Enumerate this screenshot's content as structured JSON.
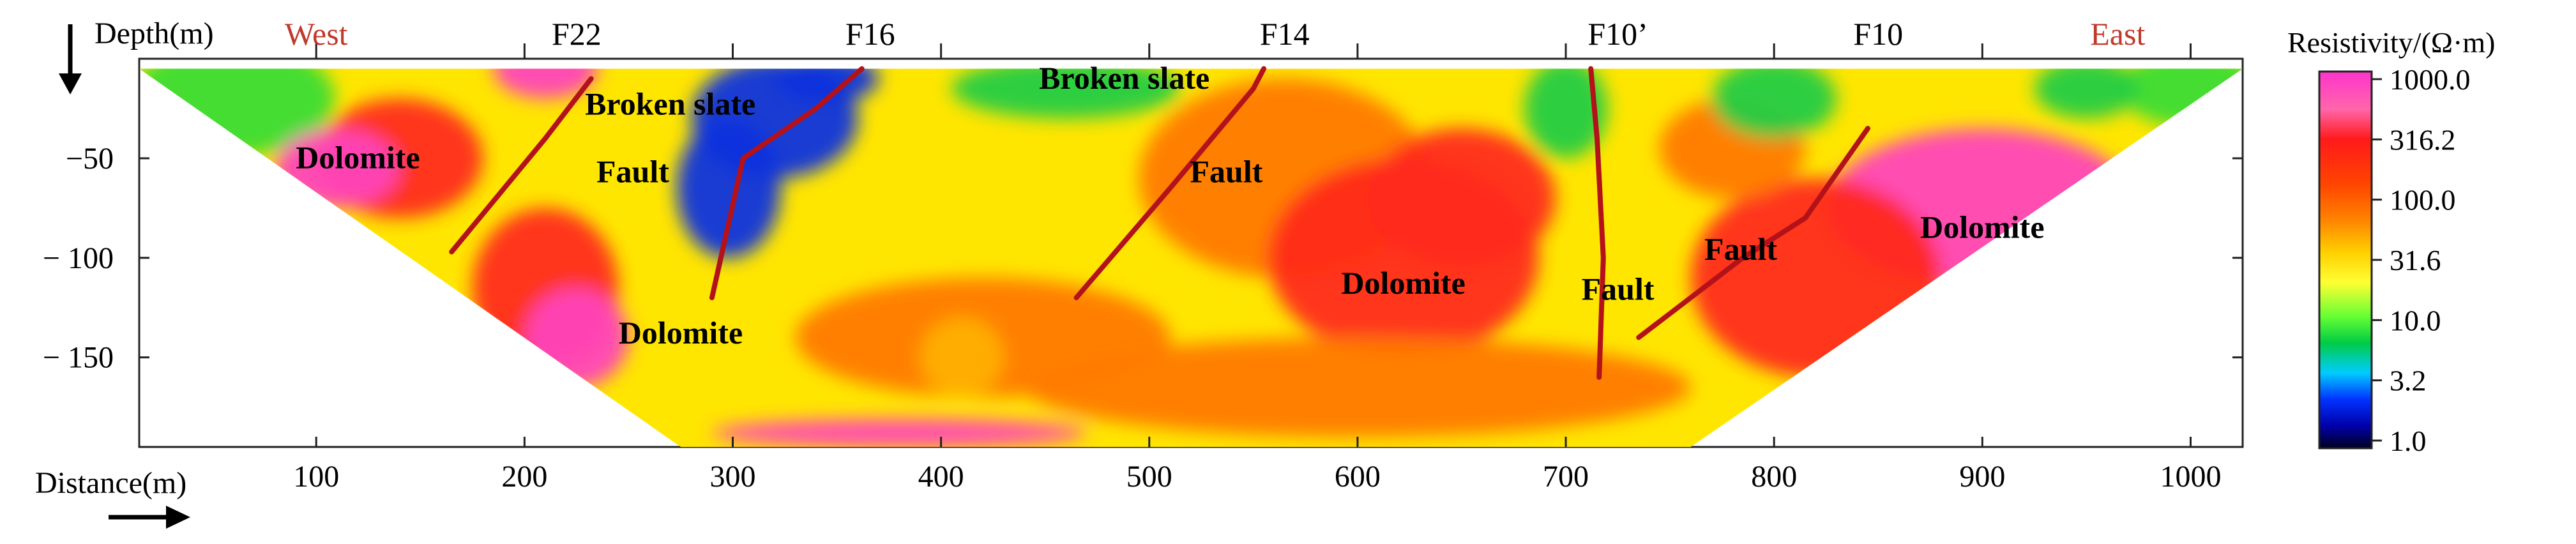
{
  "figure": {
    "depth_axis_label": "Depth(m)",
    "distance_axis_label": "Distance(m)",
    "direction_left": "West",
    "direction_right": "East",
    "direction_color": "#c0392b"
  },
  "chart_data": {
    "type": "heatmap",
    "title": "",
    "xlabel": "Distance(m)",
    "ylabel": "Depth(m)",
    "xlim": [
      15,
      1025
    ],
    "ylim": [
      -195,
      0
    ],
    "x_ticks": [
      {
        "value": 100,
        "label": "100"
      },
      {
        "value": 200,
        "label": "200"
      },
      {
        "value": 300,
        "label": "300"
      },
      {
        "value": 400,
        "label": "400"
      },
      {
        "value": 500,
        "label": "500"
      },
      {
        "value": 600,
        "label": "600"
      },
      {
        "value": 700,
        "label": "700"
      },
      {
        "value": 800,
        "label": "800"
      },
      {
        "value": 900,
        "label": "900"
      },
      {
        "value": 1000,
        "label": "1000"
      }
    ],
    "y_ticks": [
      {
        "value": -50,
        "label": "−50"
      },
      {
        "value": -100,
        "label": "− 100"
      },
      {
        "value": -150,
        "label": "− 150"
      }
    ],
    "top_labels": [
      {
        "x": 100,
        "text": "West",
        "color": "#c0392b"
      },
      {
        "x": 225,
        "text": "F22",
        "color": "#000000"
      },
      {
        "x": 366,
        "text": "F16",
        "color": "#000000"
      },
      {
        "x": 565,
        "text": "F14",
        "color": "#000000"
      },
      {
        "x": 725,
        "text": "F10’",
        "color": "#000000"
      },
      {
        "x": 850,
        "text": "F10",
        "color": "#000000"
      },
      {
        "x": 965,
        "text": "East",
        "color": "#c0392b"
      }
    ],
    "grid": false,
    "colorbar": {
      "label": "Resistivity/(Ω·m)",
      "scale": "log",
      "ticks": [
        "1000.0",
        "316.2",
        "100.0",
        "31.6",
        "10.0",
        "3.2",
        "1.0"
      ],
      "tick_values": [
        1000,
        316.2,
        100,
        31.6,
        10,
        3.2,
        1
      ]
    },
    "section": {
      "top_left_x": 15,
      "top_right_x": 1025,
      "bottom_left_x": 275,
      "bottom_right_x": 760,
      "top_depth": -5,
      "bottom_depth": -195
    },
    "faults": [
      {
        "name": "F22",
        "points": [
          [
            165,
            -97
          ],
          [
            210,
            -40
          ],
          [
            232,
            -10
          ]
        ]
      },
      {
        "name": "F16",
        "points": [
          [
            290,
            -120
          ],
          [
            305,
            -50
          ],
          [
            340,
            -25
          ],
          [
            362,
            -5
          ]
        ]
      },
      {
        "name": "F14",
        "points": [
          [
            465,
            -120
          ],
          [
            510,
            -65
          ],
          [
            550,
            -15
          ],
          [
            555,
            -5
          ]
        ]
      },
      {
        "name": "F10’",
        "points": [
          [
            716,
            -160
          ],
          [
            718,
            -100
          ],
          [
            715,
            -40
          ],
          [
            712,
            -5
          ]
        ]
      },
      {
        "name": "F10",
        "points": [
          [
            735,
            -140
          ],
          [
            785,
            -100
          ],
          [
            815,
            -80
          ],
          [
            845,
            -35
          ]
        ]
      }
    ],
    "annotations": [
      {
        "text": "Broken slate",
        "x": 270,
        "y": -28
      },
      {
        "text": "Broken slate",
        "x": 488,
        "y": -15
      },
      {
        "text": "Dolomite",
        "x": 120,
        "y": -55
      },
      {
        "text": "Dolomite",
        "x": 275,
        "y": -143
      },
      {
        "text": "Dolomite",
        "x": 622,
        "y": -118
      },
      {
        "text": "Dolomite",
        "x": 900,
        "y": -90
      },
      {
        "text": "Fault",
        "x": 252,
        "y": -62
      },
      {
        "text": "Fault",
        "x": 537,
        "y": -62
      },
      {
        "text": "Fault",
        "x": 725,
        "y": -121
      },
      {
        "text": "Fault",
        "x": 784,
        "y": -101
      }
    ],
    "resistivity_zones": [
      {
        "x": 565,
        "y": -60,
        "rx": 70,
        "ry": 50,
        "level": "high"
      },
      {
        "x": 622,
        "y": -100,
        "rx": 65,
        "ry": 50,
        "level": "very-high"
      },
      {
        "x": 650,
        "y": -70,
        "rx": 45,
        "ry": 35,
        "level": "very-high"
      },
      {
        "x": 900,
        "y": -75,
        "rx": 75,
        "ry": 40,
        "level": "extreme"
      },
      {
        "x": 820,
        "y": -110,
        "rx": 60,
        "ry": 50,
        "level": "very-high"
      },
      {
        "x": 780,
        "y": -45,
        "rx": 35,
        "ry": 25,
        "level": "high"
      },
      {
        "x": 210,
        "y": -115,
        "rx": 35,
        "ry": 40,
        "level": "very-high"
      },
      {
        "x": 225,
        "y": -140,
        "rx": 25,
        "ry": 25,
        "level": "extreme"
      },
      {
        "x": 140,
        "y": -50,
        "rx": 40,
        "ry": 30,
        "level": "very-high"
      },
      {
        "x": 110,
        "y": -55,
        "rx": 30,
        "ry": 20,
        "level": "extreme"
      },
      {
        "x": 210,
        "y": -5,
        "rx": 25,
        "ry": 15,
        "level": "extreme"
      },
      {
        "x": 460,
        "y": -15,
        "rx": 55,
        "ry": 15,
        "level": "medium"
      },
      {
        "x": 700,
        "y": -25,
        "rx": 20,
        "ry": 25,
        "level": "medium"
      },
      {
        "x": 800,
        "y": -20,
        "rx": 30,
        "ry": 20,
        "level": "medium"
      },
      {
        "x": 320,
        "y": -30,
        "rx": 40,
        "ry": 30,
        "level": "low"
      },
      {
        "x": 298,
        "y": -65,
        "rx": 25,
        "ry": 35,
        "level": "low"
      },
      {
        "x": 345,
        "y": -10,
        "rx": 25,
        "ry": 12,
        "level": "low"
      },
      {
        "x": 420,
        "y": -140,
        "rx": 90,
        "ry": 30,
        "level": "high"
      },
      {
        "x": 600,
        "y": -165,
        "rx": 160,
        "ry": 25,
        "level": "high"
      },
      {
        "x": 380,
        "y": -188,
        "rx": 90,
        "ry": 7,
        "level": "extreme"
      },
      {
        "x": 410,
        "y": -150,
        "rx": 20,
        "ry": 20,
        "level": "medium-high"
      },
      {
        "x": 950,
        "y": -15,
        "rx": 25,
        "ry": 15,
        "level": "medium"
      }
    ]
  }
}
